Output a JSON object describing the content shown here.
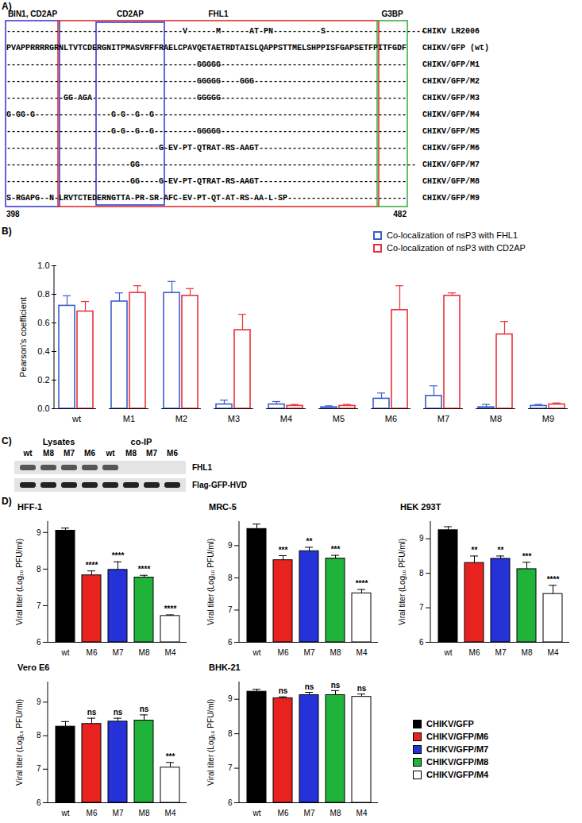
{
  "alignment": {
    "panel_label": "A)",
    "first_residue": 398,
    "last_residue": 482,
    "regions": [
      {
        "label": "BIN1, CD2AP",
        "start": 398,
        "end": 408,
        "color": "#3d3dd8"
      },
      {
        "label": "FHL1",
        "start": 409,
        "end": 475,
        "color": "#e0302a"
      },
      {
        "label": "CD2AP",
        "start": 417,
        "end": 430,
        "color": "#3d3dd8"
      },
      {
        "label": "G3BP",
        "start": 476,
        "end": 481,
        "color": "#3cb043"
      }
    ],
    "rows": [
      {
        "name": "CHIKV LR2006",
        "sequence": "-------------------------------------V------M------AT-PN----------S---------------------"
      },
      {
        "name": "CHIKV/GFP (wt)",
        "sequence": "PVAPPRRRRGRNLTVTCDERGNITPMASVRFFRAELCPAVQETAETRDTAISLQAPPSTTMELSHPPISFGAPSETFPITFGDF"
      },
      {
        "name": "CHIKV/GFP/M1",
        "sequence": "----------------------------------------GGGGG---------------------------------------"
      },
      {
        "name": "CHIKV/GFP/M2",
        "sequence": "----------------------------------------GGGGG----GGG--------------------------------"
      },
      {
        "name": "CHIKV/GFP/M3",
        "sequence": "------------GG-AGA----------------------GGGGG---------------------------------------"
      },
      {
        "name": "CHIKV/GFP/M4",
        "sequence": "G-GG-G----------------G-G--G--G-----------------------------------------------------"
      },
      {
        "name": "CHIKV/GFP/M5",
        "sequence": "----------------------G-G--G--G---------GGGGG---------------------------------------"
      },
      {
        "name": "CHIKV/GFP/M6",
        "sequence": "--------------------------------G-EV-PT-QTRAT-RS-AAGT-------------------------------"
      },
      {
        "name": "CHIKV/GFP/M7",
        "sequence": "--------------------------GG----------------------------------------------------------"
      },
      {
        "name": "CHIKV/GFP/M8",
        "sequence": "--------------------------GG----G-EV-PT-QTRAT-RS-AAGT-------------------------------"
      },
      {
        "name": "CHIKV/GFP/M9",
        "sequence": "S-RGAPG--N-LRVTCTEDERNGTTA-PR-SR-AFC-EV-PT-QT-AT-RS-AA-L-SP-------------------------"
      }
    ]
  },
  "blot": {
    "panel_label": "C)",
    "groups": [
      {
        "label": "Lysates",
        "lanes": [
          "wt",
          "M8",
          "M7",
          "M6"
        ]
      },
      {
        "label": "co-IP",
        "lanes": [
          "wt",
          "M8",
          "M7",
          "M6"
        ]
      }
    ],
    "rows": [
      {
        "label": "FHL1",
        "bands": [
          true,
          true,
          true,
          true,
          true,
          false,
          false,
          false
        ]
      },
      {
        "label": "Flag-GFP-HVD",
        "bands": [
          true,
          true,
          true,
          true,
          true,
          true,
          true,
          true
        ]
      }
    ]
  },
  "chart_data": [
    {
      "type": "bar",
      "panel_label": "B)",
      "categories": [
        "wt",
        "M1",
        "M2",
        "M3",
        "M4",
        "M5",
        "M6",
        "M7",
        "M8",
        "M9"
      ],
      "series": [
        {
          "name": "Co-localization of nsP3 with FHL1",
          "color": "#3a5fcd",
          "values": [
            0.72,
            0.75,
            0.81,
            0.03,
            0.03,
            0.01,
            0.07,
            0.09,
            0.01,
            0.02
          ],
          "errors": [
            0.07,
            0.06,
            0.08,
            0.03,
            0.02,
            0.01,
            0.04,
            0.07,
            0.02,
            0.01
          ]
        },
        {
          "name": "Co-localization of nsP3 with CD2AP",
          "color": "#e8333a",
          "values": [
            0.68,
            0.81,
            0.79,
            0.55,
            0.02,
            0.02,
            0.69,
            0.79,
            0.52,
            0.03
          ],
          "errors": [
            0.07,
            0.05,
            0.05,
            0.11,
            0.01,
            0.01,
            0.17,
            0.02,
            0.09,
            0.01
          ]
        }
      ],
      "y_label": "Pearson's coefficient",
      "ylim": [
        0,
        1
      ],
      "yticks": [
        {
          "value": 0,
          "label": "0.0"
        },
        {
          "value": 0.2,
          "label": "0.2"
        },
        {
          "value": 0.4,
          "label": "0.4"
        },
        {
          "value": 0.6,
          "label": "0.6"
        },
        {
          "value": 0.8,
          "label": "0.8"
        },
        {
          "value": 1,
          "label": "1.0"
        }
      ],
      "legend": "top-right"
    },
    {
      "type": "bar",
      "panel_label": "D)",
      "title": "HFF-1",
      "categories": [
        "wt",
        "M6",
        "M7",
        "M8",
        "M4"
      ],
      "values": [
        9.05,
        7.83,
        7.98,
        7.77,
        6.72
      ],
      "errors": [
        0.07,
        0.12,
        0.22,
        0.06,
        0.03
      ],
      "significance": [
        null,
        "****",
        "****",
        "****",
        "****"
      ],
      "colors": [
        "#000000",
        "#e8231f",
        "#2432d8",
        "#1fb33a",
        "#ffffff"
      ],
      "y_label": "Viral titer (Log₁₀ PFU/ml)",
      "ylim": [
        6,
        9.3
      ],
      "yticks": [
        6,
        7,
        8,
        9
      ]
    },
    {
      "type": "bar",
      "title": "MRC-5",
      "categories": [
        "wt",
        "M6",
        "M7",
        "M8",
        "M4"
      ],
      "values": [
        9.52,
        8.55,
        8.83,
        8.6,
        7.52
      ],
      "errors": [
        0.15,
        0.14,
        0.12,
        0.1,
        0.12
      ],
      "significance": [
        null,
        "***",
        "**",
        "***",
        "****"
      ],
      "colors": [
        "#000000",
        "#e8231f",
        "#2432d8",
        "#1fb33a",
        "#ffffff"
      ],
      "y_label": "Viral titer (Log₁₀ PFU/ml)",
      "ylim": [
        6,
        9.75
      ],
      "yticks": [
        6,
        7,
        8,
        9
      ]
    },
    {
      "type": "bar",
      "title": "HEK 293T",
      "categories": [
        "wt",
        "M6",
        "M7",
        "M8",
        "M4"
      ],
      "values": [
        9.25,
        8.3,
        8.42,
        8.12,
        7.4
      ],
      "errors": [
        0.1,
        0.2,
        0.08,
        0.2,
        0.25
      ],
      "significance": [
        null,
        "**",
        "**",
        "***",
        "****"
      ],
      "colors": [
        "#000000",
        "#e8231f",
        "#2432d8",
        "#1fb33a",
        "#ffffff"
      ],
      "y_label": "Viral titer (Log₁₀ PFU/ml)",
      "ylim": [
        6,
        9.5
      ],
      "yticks": [
        6,
        7,
        8,
        9
      ]
    },
    {
      "type": "bar",
      "title": "Vero E6",
      "categories": [
        "wt",
        "M6",
        "M7",
        "M8",
        "M4"
      ],
      "values": [
        8.27,
        8.35,
        8.42,
        8.45,
        7.05
      ],
      "errors": [
        0.15,
        0.17,
        0.1,
        0.17,
        0.15
      ],
      "significance": [
        null,
        "ns",
        "ns",
        "ns",
        "***"
      ],
      "colors": [
        "#000000",
        "#e8231f",
        "#2432d8",
        "#1fb33a",
        "#ffffff"
      ],
      "y_label": "Viral titer (Log₁₀ PFU/ml)",
      "ylim": [
        6,
        9.6
      ],
      "yticks": [
        6,
        7,
        8,
        9
      ]
    },
    {
      "type": "bar",
      "title": "BHK-21",
      "categories": [
        "wt",
        "M6",
        "M7",
        "M8",
        "M4"
      ],
      "values": [
        9.22,
        9.03,
        9.12,
        9.12,
        9.07
      ],
      "errors": [
        0.07,
        0.04,
        0.08,
        0.13,
        0.08
      ],
      "significance": [
        null,
        "ns",
        "ns",
        "ns",
        "ns"
      ],
      "colors": [
        "#000000",
        "#e8231f",
        "#2432d8",
        "#1fb33a",
        "#ffffff"
      ],
      "y_label": "Viral titer (Log₁₀ PFU/ml)",
      "ylim": [
        6,
        9.5
      ],
      "yticks": [
        6,
        7,
        8,
        9
      ]
    }
  ],
  "panel_d_legend": {
    "series": [
      {
        "name": "CHIKV/GFP",
        "color": "#000000"
      },
      {
        "name": "CHIKV/GFP/M6",
        "color": "#e8231f"
      },
      {
        "name": "CHIKV/GFP/M7",
        "color": "#2432d8"
      },
      {
        "name": "CHIKV/GFP/M8",
        "color": "#1fb33a"
      },
      {
        "name": "CHIKV/GFP/M4",
        "color": "#ffffff"
      }
    ]
  }
}
